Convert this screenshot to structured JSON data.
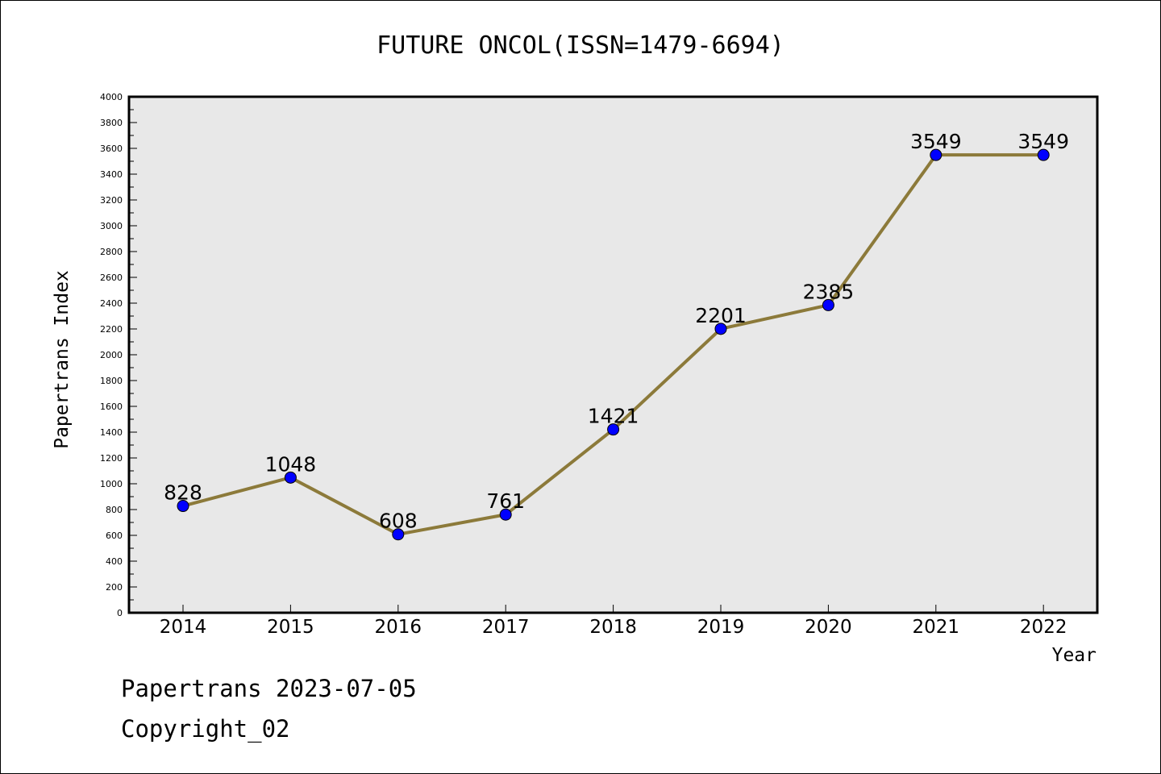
{
  "chart_data": {
    "type": "line",
    "title": "FUTURE ONCOL(ISSN=1479-6694)",
    "xlabel": "Year",
    "ylabel": "Papertrans Index",
    "categories": [
      "2014",
      "2015",
      "2016",
      "2017",
      "2018",
      "2019",
      "2020",
      "2021",
      "2022"
    ],
    "values": [
      828,
      1048,
      608,
      761,
      1421,
      2201,
      2385,
      3549,
      3549
    ],
    "ylim": [
      0,
      4000
    ],
    "ytick_step": 200,
    "grid": false,
    "line_color": "#8c7a3a",
    "marker_color": "#0000ff",
    "plot_background": "#e8e8e8"
  },
  "footer": {
    "line1": "Papertrans 2023-07-05",
    "line2": "Copyright_02"
  }
}
